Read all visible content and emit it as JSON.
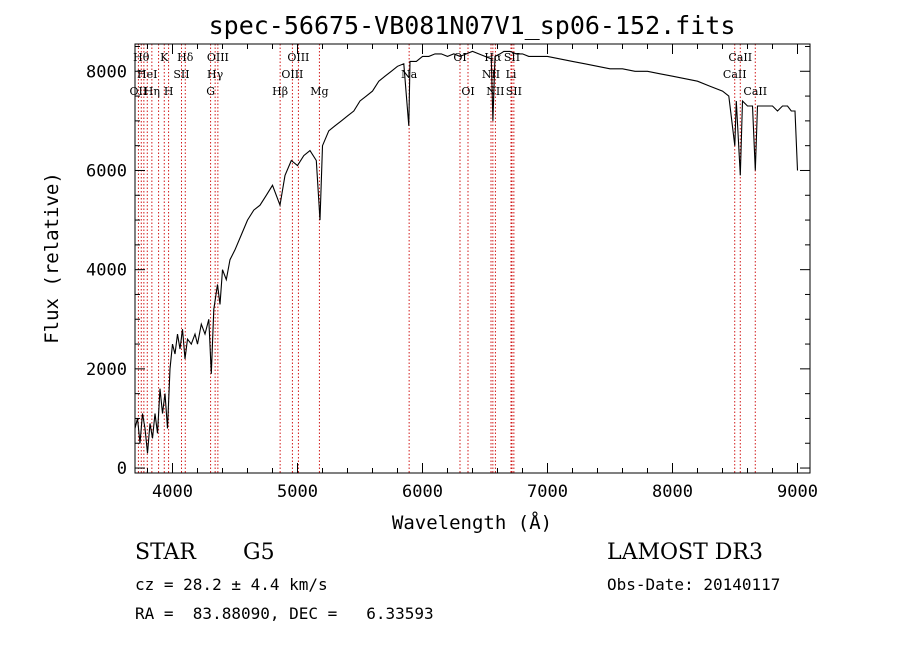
{
  "chart_data": {
    "type": "line",
    "title": "spec-56675-VB081N07V1_sp06-152.fits",
    "xlabel": "Wavelength (Å)",
    "ylabel": "Flux (relative)",
    "xlim": [
      3700,
      9100
    ],
    "ylim": [
      -100,
      8550
    ],
    "xticks": [
      4000,
      5000,
      6000,
      7000,
      8000,
      9000
    ],
    "yticks": [
      0,
      2000,
      4000,
      6000,
      8000
    ],
    "series": [
      {
        "name": "spectrum",
        "points": [
          [
            3700,
            800
          ],
          [
            3720,
            1000
          ],
          [
            3740,
            500
          ],
          [
            3760,
            1100
          ],
          [
            3780,
            800
          ],
          [
            3800,
            300
          ],
          [
            3820,
            900
          ],
          [
            3840,
            600
          ],
          [
            3860,
            1100
          ],
          [
            3880,
            700
          ],
          [
            3900,
            1600
          ],
          [
            3920,
            1100
          ],
          [
            3940,
            1500
          ],
          [
            3960,
            800
          ],
          [
            3980,
            2000
          ],
          [
            4000,
            2500
          ],
          [
            4020,
            2300
          ],
          [
            4040,
            2700
          ],
          [
            4060,
            2400
          ],
          [
            4080,
            2800
          ],
          [
            4100,
            2200
          ],
          [
            4120,
            2600
          ],
          [
            4150,
            2500
          ],
          [
            4180,
            2700
          ],
          [
            4200,
            2500
          ],
          [
            4230,
            2900
          ],
          [
            4260,
            2700
          ],
          [
            4290,
            3000
          ],
          [
            4310,
            1900
          ],
          [
            4330,
            3200
          ],
          [
            4360,
            3700
          ],
          [
            4380,
            3300
          ],
          [
            4400,
            4000
          ],
          [
            4430,
            3800
          ],
          [
            4460,
            4200
          ],
          [
            4500,
            4400
          ],
          [
            4550,
            4700
          ],
          [
            4600,
            5000
          ],
          [
            4650,
            5200
          ],
          [
            4700,
            5300
          ],
          [
            4750,
            5500
          ],
          [
            4800,
            5700
          ],
          [
            4860,
            5300
          ],
          [
            4900,
            5900
          ],
          [
            4950,
            6200
          ],
          [
            5000,
            6100
          ],
          [
            5050,
            6300
          ],
          [
            5100,
            6400
          ],
          [
            5150,
            6200
          ],
          [
            5180,
            5000
          ],
          [
            5200,
            6500
          ],
          [
            5250,
            6800
          ],
          [
            5300,
            6900
          ],
          [
            5350,
            7000
          ],
          [
            5400,
            7100
          ],
          [
            5450,
            7200
          ],
          [
            5500,
            7400
          ],
          [
            5550,
            7500
          ],
          [
            5600,
            7600
          ],
          [
            5650,
            7800
          ],
          [
            5700,
            7900
          ],
          [
            5750,
            8000
          ],
          [
            5800,
            8100
          ],
          [
            5850,
            8150
          ],
          [
            5890,
            6900
          ],
          [
            5900,
            8200
          ],
          [
            5950,
            8200
          ],
          [
            6000,
            8300
          ],
          [
            6050,
            8300
          ],
          [
            6100,
            8350
          ],
          [
            6150,
            8350
          ],
          [
            6200,
            8300
          ],
          [
            6250,
            8350
          ],
          [
            6300,
            8300
          ],
          [
            6350,
            8350
          ],
          [
            6400,
            8400
          ],
          [
            6450,
            8350
          ],
          [
            6500,
            8300
          ],
          [
            6550,
            8250
          ],
          [
            6563,
            7000
          ],
          [
            6580,
            8300
          ],
          [
            6620,
            8350
          ],
          [
            6650,
            8400
          ],
          [
            6700,
            8400
          ],
          [
            6750,
            8350
          ],
          [
            6800,
            8350
          ],
          [
            6850,
            8300
          ],
          [
            6900,
            8300
          ],
          [
            7000,
            8300
          ],
          [
            7100,
            8250
          ],
          [
            7200,
            8200
          ],
          [
            7300,
            8150
          ],
          [
            7400,
            8100
          ],
          [
            7500,
            8050
          ],
          [
            7600,
            8050
          ],
          [
            7700,
            8000
          ],
          [
            7800,
            8000
          ],
          [
            7900,
            7950
          ],
          [
            8000,
            7900
          ],
          [
            8100,
            7850
          ],
          [
            8200,
            7800
          ],
          [
            8300,
            7700
          ],
          [
            8400,
            7600
          ],
          [
            8450,
            7500
          ],
          [
            8498,
            6500
          ],
          [
            8510,
            7400
          ],
          [
            8542,
            5900
          ],
          [
            8560,
            7400
          ],
          [
            8600,
            7300
          ],
          [
            8640,
            7300
          ],
          [
            8662,
            6000
          ],
          [
            8680,
            7300
          ],
          [
            8720,
            7300
          ],
          [
            8760,
            7300
          ],
          [
            8800,
            7300
          ],
          [
            8840,
            7200
          ],
          [
            8880,
            7300
          ],
          [
            8920,
            7300
          ],
          [
            8950,
            7200
          ],
          [
            8980,
            7200
          ],
          [
            9000,
            6000
          ]
        ]
      }
    ],
    "reference_lines": [
      {
        "wavelength": 3727,
        "labels": [
          {
            "text": "OII",
            "row": 2
          }
        ]
      },
      {
        "wavelength": 3750,
        "labels": [
          {
            "text": "Hθ",
            "row": 0
          }
        ]
      },
      {
        "wavelength": 3771,
        "labels": [
          {
            "text": "",
            "row": 0
          }
        ]
      },
      {
        "wavelength": 3798,
        "labels": [
          {
            "text": "HeI",
            "row": 1
          }
        ]
      },
      {
        "wavelength": 3835,
        "labels": [
          {
            "text": "Hη",
            "row": 2
          }
        ]
      },
      {
        "wavelength": 3889,
        "labels": [
          {
            "text": "",
            "row": 0
          }
        ]
      },
      {
        "wavelength": 3934,
        "labels": [
          {
            "text": "K",
            "row": 0
          }
        ]
      },
      {
        "wavelength": 3969,
        "labels": [
          {
            "text": "H",
            "row": 2
          }
        ]
      },
      {
        "wavelength": 4072,
        "labels": [
          {
            "text": "SII",
            "row": 1
          }
        ]
      },
      {
        "wavelength": 4102,
        "labels": [
          {
            "text": "Hδ",
            "row": 0
          }
        ]
      },
      {
        "wavelength": 4305,
        "labels": [
          {
            "text": "G",
            "row": 2
          }
        ]
      },
      {
        "wavelength": 4341,
        "labels": [
          {
            "text": "Hγ",
            "row": 1
          }
        ]
      },
      {
        "wavelength": 4363,
        "labels": [
          {
            "text": "OIII",
            "row": 0
          }
        ]
      },
      {
        "wavelength": 4861,
        "labels": [
          {
            "text": "Hβ",
            "row": 2
          }
        ]
      },
      {
        "wavelength": 4959,
        "labels": [
          {
            "text": "OIII",
            "row": 1
          }
        ]
      },
      {
        "wavelength": 5007,
        "labels": [
          {
            "text": "OIII",
            "row": 0
          }
        ]
      },
      {
        "wavelength": 5175,
        "labels": [
          {
            "text": "Mg",
            "row": 2
          }
        ]
      },
      {
        "wavelength": 5893,
        "labels": [
          {
            "text": "Na",
            "row": 1
          }
        ]
      },
      {
        "wavelength": 6300,
        "labels": [
          {
            "text": "OI",
            "row": 0
          }
        ]
      },
      {
        "wavelength": 6364,
        "labels": [
          {
            "text": "OI",
            "row": 2
          }
        ]
      },
      {
        "wavelength": 6548,
        "labels": [
          {
            "text": "NII",
            "row": 1
          }
        ]
      },
      {
        "wavelength": 6563,
        "labels": [
          {
            "text": "Hα",
            "row": 0
          }
        ]
      },
      {
        "wavelength": 6583,
        "labels": [
          {
            "text": "NII",
            "row": 2
          }
        ]
      },
      {
        "wavelength": 6708,
        "labels": [
          {
            "text": "Li",
            "row": 1
          }
        ]
      },
      {
        "wavelength": 6716,
        "labels": [
          {
            "text": "SII",
            "row": 0
          }
        ]
      },
      {
        "wavelength": 6731,
        "labels": [
          {
            "text": "SII",
            "row": 2
          }
        ]
      },
      {
        "wavelength": 8498,
        "labels": [
          {
            "text": "CaII",
            "row": 1
          }
        ]
      },
      {
        "wavelength": 8542,
        "labels": [
          {
            "text": "CaII",
            "row": 0
          }
        ]
      },
      {
        "wavelength": 8662,
        "labels": [
          {
            "text": "CaII",
            "row": 2
          }
        ]
      }
    ],
    "reference_line_color": "#cc0000"
  },
  "info": {
    "object_class": "STAR",
    "subclass": "G5",
    "survey": "LAMOST DR3",
    "redshift_line": "cz = 28.2 ± 4.4 km/s",
    "obs_date_line": "Obs-Date: 20140117",
    "coords_line": "RA =  83.88090, DEC =   6.33593"
  }
}
